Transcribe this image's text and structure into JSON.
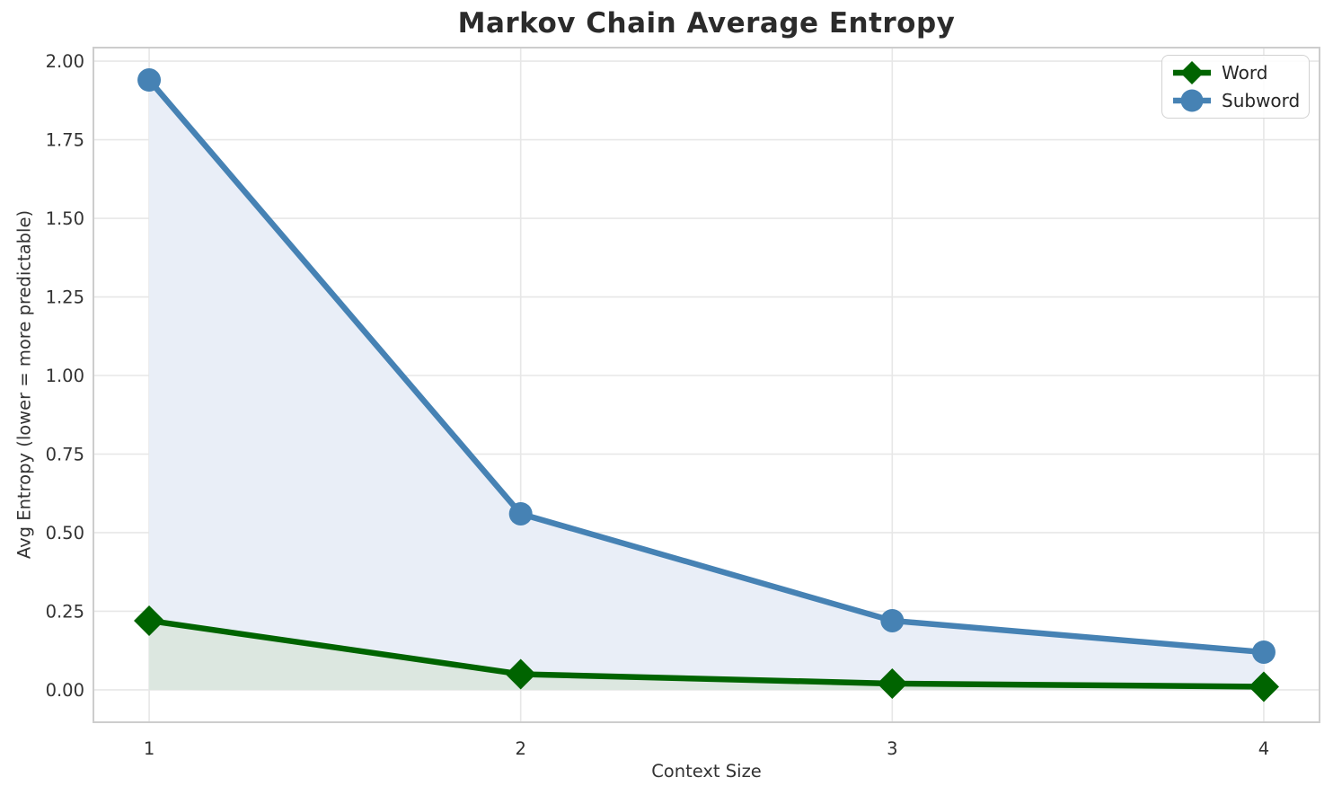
{
  "chart_data": {
    "type": "line",
    "title": "Markov Chain Average Entropy",
    "xlabel": "Context Size",
    "ylabel": "Avg Entropy (lower = more predictable)",
    "x": [
      1,
      2,
      3,
      4
    ],
    "xtick_labels": [
      "1",
      "2",
      "3",
      "4"
    ],
    "ytick_values": [
      0.0,
      0.25,
      0.5,
      0.75,
      1.0,
      1.25,
      1.5,
      1.75,
      2.0
    ],
    "ytick_labels": [
      "0.00",
      "0.25",
      "0.50",
      "0.75",
      "1.00",
      "1.25",
      "1.50",
      "1.75",
      "2.00"
    ],
    "xlim": [
      0.85,
      4.15
    ],
    "ylim": [
      -0.103,
      2.043
    ],
    "grid": true,
    "legend_position": "upper right",
    "series": [
      {
        "name": "Word",
        "marker": "diamond",
        "color": "#006400",
        "fill_color": "#dce7e0",
        "values": [
          0.22,
          0.05,
          0.02,
          0.01
        ]
      },
      {
        "name": "Subword",
        "marker": "circle",
        "color": "#4682b4",
        "fill_color": "#e9eef7",
        "values": [
          1.94,
          0.56,
          0.22,
          0.12
        ]
      }
    ],
    "colors": {
      "grid": "#e7e7e7",
      "spine": "#cdcdcd",
      "tick_text": "#333333",
      "title_text": "#2b2b2b"
    }
  }
}
